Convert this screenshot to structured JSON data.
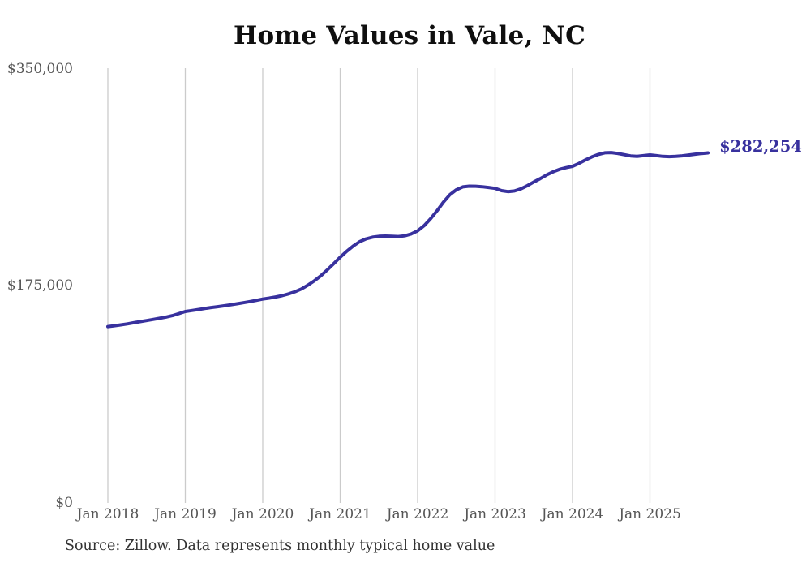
{
  "title": "Home Values in Vale, NC",
  "end_label": "$282,254",
  "source_note": "Source: Zillow. Data represents monthly typical home value",
  "colors": {
    "line": "#38319e",
    "grid": "#cbcbcb",
    "axis_text": "#555555",
    "title_text": "#0f0f0f",
    "source_text": "#323232",
    "background": "#ffffff"
  },
  "y_axis": {
    "ticks": [
      {
        "label": "$350,000",
        "value": 350000
      },
      {
        "label": "$175,000",
        "value": 175000
      },
      {
        "label": "$0",
        "value": 0
      }
    ]
  },
  "x_axis": {
    "ticks": [
      "Jan 2018",
      "Jan 2019",
      "Jan 2020",
      "Jan 2021",
      "Jan 2022",
      "Jan 2023",
      "Jan 2024",
      "Jan 2025"
    ]
  },
  "chart_data": {
    "type": "line",
    "title": "Home Values in Vale, NC",
    "xlabel": "",
    "ylabel": "",
    "ylim": [
      0,
      350000
    ],
    "y_tick_labels": [
      "$0",
      "$175,000",
      "$350,000"
    ],
    "x_tick_labels": [
      "Jan 2018",
      "Jan 2019",
      "Jan 2020",
      "Jan 2021",
      "Jan 2022",
      "Jan 2023",
      "Jan 2024",
      "Jan 2025"
    ],
    "x_start_month": "2018-01",
    "x_end_month": "2025-10",
    "x_interval": "monthly",
    "grid": "vertical-only",
    "legend": "none",
    "latest_value": 282254,
    "latest_value_label": "$282,254",
    "series": [
      {
        "name": "Typical home value",
        "values": [
          142000,
          142700,
          143400,
          144200,
          145100,
          146000,
          146900,
          147800,
          148700,
          149700,
          150900,
          152500,
          154200,
          155000,
          155800,
          156600,
          157400,
          158100,
          158800,
          159600,
          160400,
          161300,
          162200,
          163200,
          164200,
          165000,
          165900,
          167000,
          168400,
          170200,
          172400,
          175500,
          179000,
          183000,
          187800,
          192800,
          198000,
          202800,
          207000,
          210500,
          212800,
          214200,
          214900,
          215100,
          214900,
          214700,
          215300,
          216800,
          219300,
          223500,
          229000,
          235500,
          242500,
          248500,
          252500,
          254800,
          255400,
          255300,
          254900,
          254300,
          253600,
          251800,
          251000,
          251500,
          253200,
          255800,
          258800,
          261500,
          264500,
          267000,
          269000,
          270300,
          271400,
          273800,
          276500,
          279000,
          281000,
          282300,
          282500,
          281800,
          280800,
          279800,
          279500,
          280000,
          280600,
          280000,
          279400,
          279200,
          279400,
          279900,
          280500,
          281200,
          281800,
          282254
        ]
      }
    ]
  }
}
